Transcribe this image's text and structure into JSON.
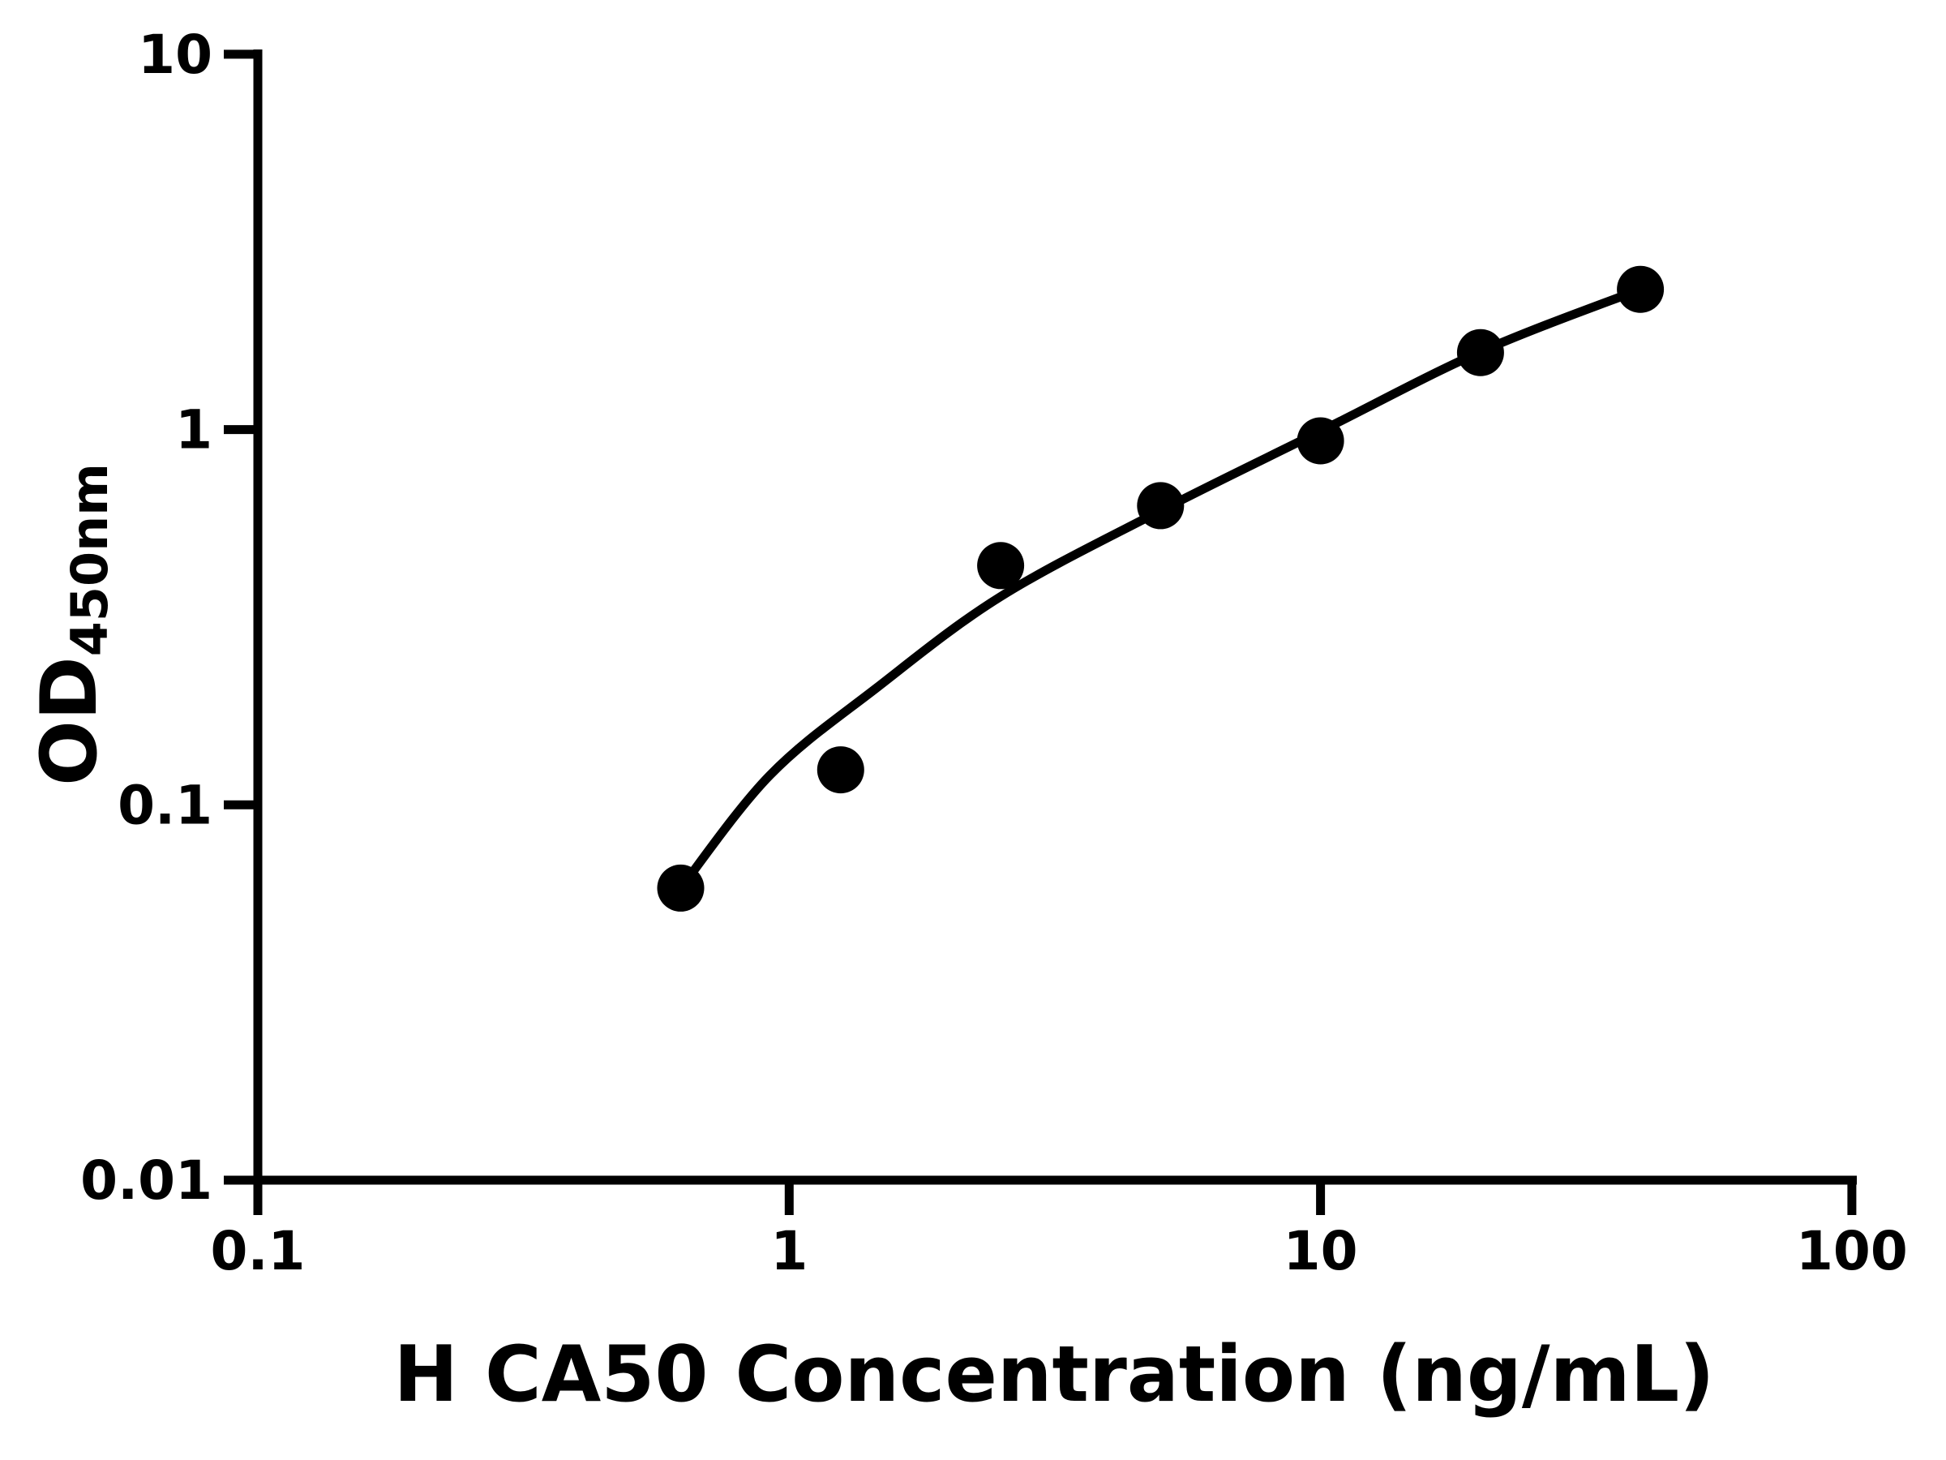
{
  "figure": {
    "background_color": "#ffffff",
    "ink_color": "#000000"
  },
  "chart_data": {
    "type": "scatter",
    "subtype": "log-log standard curve with fitted line",
    "title": "",
    "xlabel": "H CA50 Concentration (ng/mL)",
    "ylabel": {
      "base": "OD",
      "subscript": "450nm"
    },
    "x_scale": "log10",
    "y_scale": "log10",
    "xlim": [
      0.1,
      100
    ],
    "ylim": [
      0.01,
      10
    ],
    "grid": false,
    "legend": null,
    "x_ticks": [
      {
        "value": 0.1,
        "label": "0.1"
      },
      {
        "value": 1,
        "label": "1"
      },
      {
        "value": 10,
        "label": "10"
      },
      {
        "value": 100,
        "label": "100"
      }
    ],
    "y_ticks": [
      {
        "value": 10,
        "label": "10"
      },
      {
        "value": 1,
        "label": "1"
      },
      {
        "value": 0.1,
        "label": "0.1"
      },
      {
        "value": 0.01,
        "label": "0.01"
      }
    ],
    "points": [
      {
        "x": 0.625,
        "y": 0.06
      },
      {
        "x": 1.25,
        "y": 0.124
      },
      {
        "x": 2.5,
        "y": 0.434
      },
      {
        "x": 5,
        "y": 0.627
      },
      {
        "x": 10,
        "y": 0.933
      },
      {
        "x": 20,
        "y": 1.604
      },
      {
        "x": 40,
        "y": 2.364
      }
    ],
    "fit_curve": [
      [
        0.625,
        0.06
      ],
      [
        0.92,
        0.12
      ],
      [
        1.46,
        0.205
      ],
      [
        2.5,
        0.359
      ],
      [
        5,
        0.608
      ],
      [
        10,
        0.99
      ],
      [
        20,
        1.612
      ],
      [
        40,
        2.364
      ]
    ]
  }
}
